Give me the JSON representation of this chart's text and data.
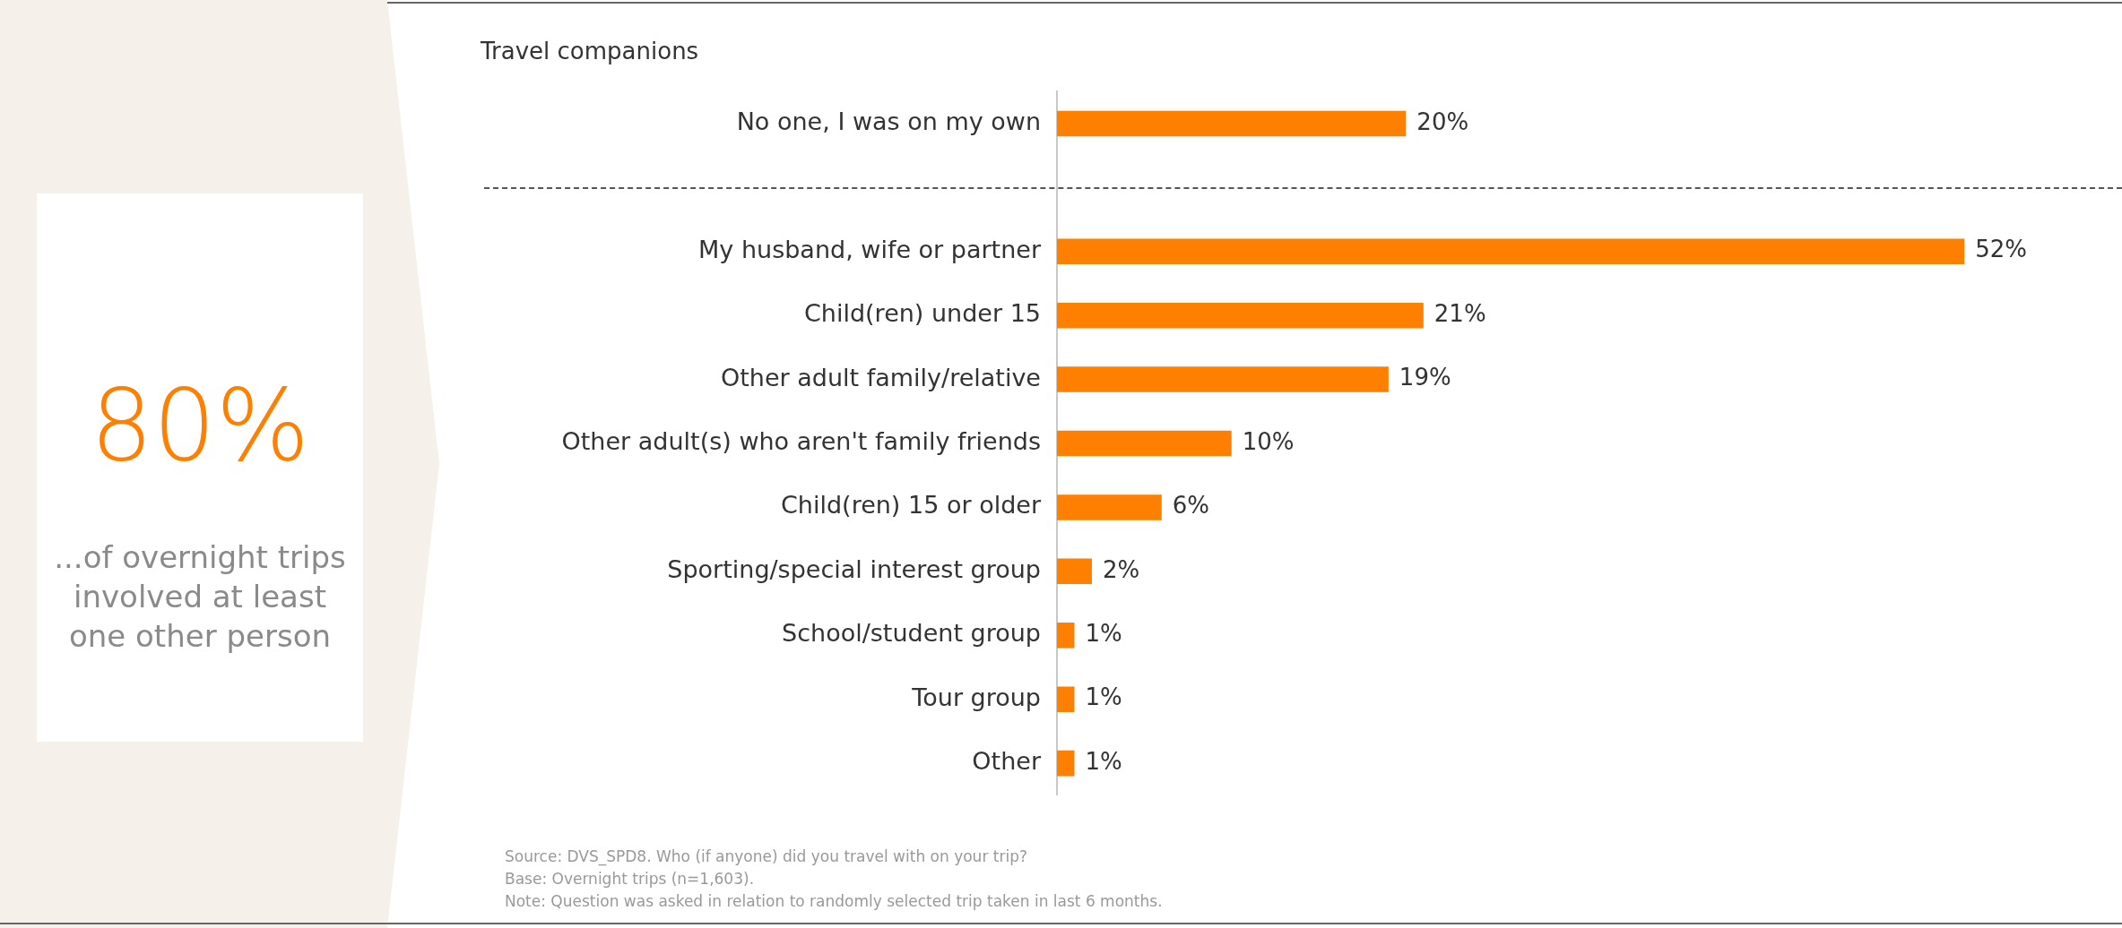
{
  "chart_data": [
    {
      "type": "other",
      "title": "80%",
      "subtitle": "...of overnight trips involved at least one other person"
    },
    {
      "type": "bar",
      "orientation": "horizontal",
      "title": "Travel companions",
      "categories": [
        "No one, I was on my own",
        null,
        "My husband, wife or partner",
        "Child(ren) under 15",
        "Other adult family/relative",
        "Other adult(s) who aren't family friends",
        "Child(ren) 15 or older",
        "Sporting/special interest group",
        "School/student group",
        "Tour group",
        "Other"
      ],
      "values": [
        20,
        null,
        52,
        21,
        19,
        10,
        6,
        2,
        1,
        1,
        1
      ],
      "value_labels": [
        "20%",
        null,
        "52%",
        "21%",
        "19%",
        "10%",
        "6%",
        "2%",
        "1%",
        "1%",
        "1%"
      ],
      "color": "#ff7f00",
      "tick_labels": "y",
      "annotations": [
        "Source: DVS_SPD8. Who (if anyone) did you travel with on your trip?",
        "Base: Overnight trips (n=1,603).",
        "Note: Question was asked in relation to randomly selected trip taken in last 6 months."
      ]
    }
  ]
}
